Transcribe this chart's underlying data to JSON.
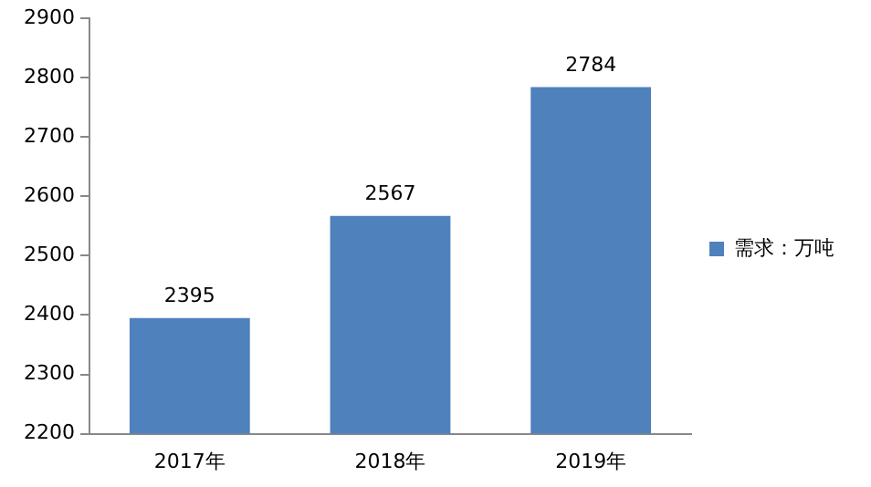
{
  "chart_data": {
    "type": "bar",
    "categories": [
      "2017年",
      "2018年",
      "2019年"
    ],
    "series": [
      {
        "name": "需求：万吨",
        "color": "#4f81bd",
        "values": [
          2395,
          2567,
          2784
        ]
      }
    ],
    "ylim": [
      2200,
      2900
    ],
    "yticks": [
      2200,
      2300,
      2400,
      2500,
      2600,
      2700,
      2800,
      2900
    ],
    "grid": false,
    "legend": "right",
    "data_labels": true
  }
}
